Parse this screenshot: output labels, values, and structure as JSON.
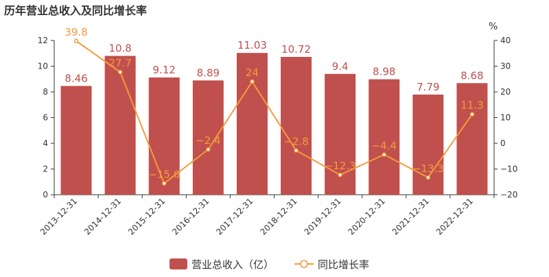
{
  "chart_data": {
    "type": "bar",
    "title": "历年营业总收入及同比增长率",
    "categories": [
      "2013-12-31",
      "2014-12-31",
      "2015-12-31",
      "2016-12-31",
      "2017-12-31",
      "2018-12-31",
      "2019-12-31",
      "2020-12-31",
      "2021-12-31",
      "2022-12-31"
    ],
    "series": [
      {
        "name": "营业总收入（亿）",
        "type": "bar",
        "axis": "left",
        "color": "#c0504d",
        "values": [
          8.46,
          10.8,
          9.12,
          8.89,
          11.03,
          10.72,
          9.4,
          8.98,
          7.79,
          8.68
        ],
        "labels": [
          "8.46",
          "10.8",
          "9.12",
          "8.89",
          "11.03",
          "10.72",
          "9.4",
          "8.98",
          "7.79",
          "8.68"
        ]
      },
      {
        "name": "同比增长率",
        "type": "line",
        "axis": "right",
        "color": "#f59a3c",
        "values": [
          39.8,
          27.7,
          -15.6,
          -2.4,
          24,
          -2.8,
          -12.3,
          -4.4,
          -13.3,
          11.3
        ],
        "labels": [
          "39.8",
          "27.7",
          "−15.6",
          "−2.4",
          "24",
          "−2.8",
          "−12.3",
          "−4.4",
          "−13.3",
          "11.3"
        ]
      }
    ],
    "y_left": {
      "min": 0,
      "max": 12,
      "ticks": [
        "0",
        "2",
        "4",
        "6",
        "8",
        "10",
        "12"
      ],
      "tick_values": [
        0,
        2,
        4,
        6,
        8,
        10,
        12
      ]
    },
    "y_right": {
      "min": -20,
      "max": 40,
      "label": "%",
      "ticks": [
        "−20",
        "−10",
        "0",
        "10",
        "20",
        "30",
        "40"
      ],
      "tick_values": [
        -20,
        -10,
        0,
        10,
        20,
        30,
        40
      ]
    },
    "grid": false,
    "legend": {
      "position": "bottom-center",
      "items": [
        "营业总收入（亿）",
        "同比增长率"
      ]
    }
  }
}
